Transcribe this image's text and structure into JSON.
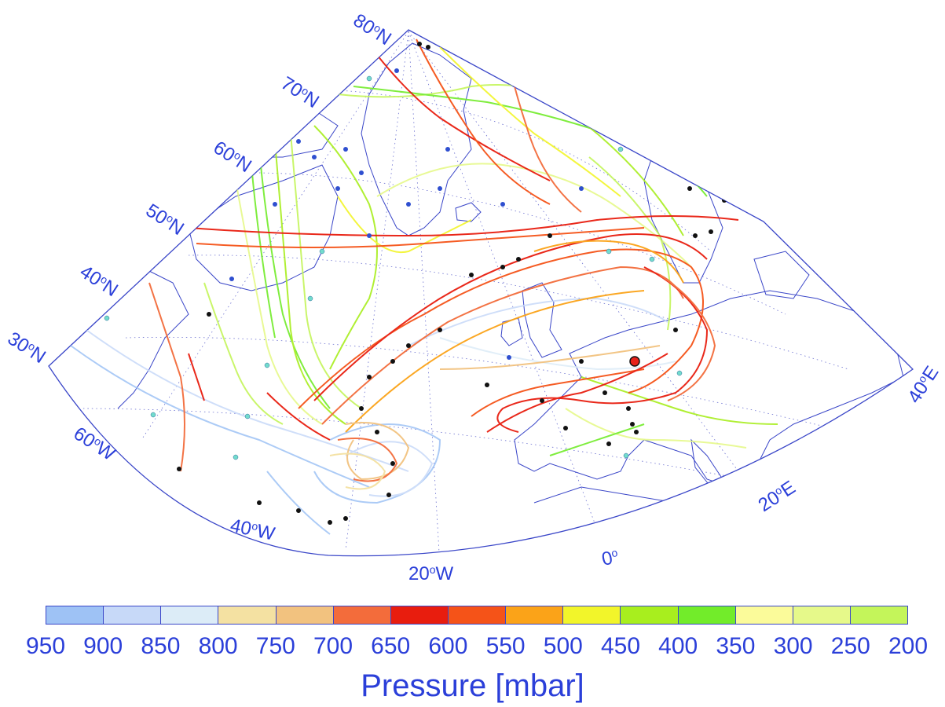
{
  "map": {
    "lat_labels": [
      "80",
      "70",
      "60",
      "50",
      "40",
      "30"
    ],
    "lon_labels_bottom": [
      "60",
      "40",
      "20",
      "0",
      "20"
    ],
    "lon_label_suffix": {
      "lat": "N",
      "west": "W",
      "east": "E"
    },
    "lon_label_right": "40",
    "frame_color": "#3a46c8",
    "land_outline_color": "#3a46c8"
  },
  "legend": {
    "title": "Pressure [mbar]",
    "levels": [
      "950",
      "900",
      "850",
      "800",
      "750",
      "700",
      "650",
      "600",
      "550",
      "500",
      "450",
      "400",
      "350",
      "300",
      "250",
      "200"
    ],
    "colors": [
      "#9ec2f5",
      "#c7d9f8",
      "#dcecf7",
      "#f4e1a2",
      "#f2c27f",
      "#f36c3b",
      "#e81d0e",
      "#f55318",
      "#fba318",
      "#f2f52a",
      "#a8ee1e",
      "#72ec2a",
      "#fbfb9a",
      "#e6f98a",
      "#c4f55a"
    ],
    "title_color": "#2b3fd9"
  },
  "markers": {
    "origin_point_color": "#e8231b",
    "start_dot_colors": [
      "#111111",
      "#2f4fd0",
      "#72dccd"
    ]
  }
}
